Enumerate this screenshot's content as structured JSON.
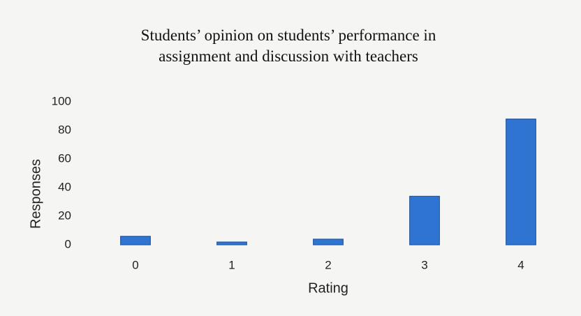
{
  "chart_data": {
    "type": "bar",
    "title": "Students’ opinion on students’ performance in assignment and discussion with teachers",
    "x_label": "Rating",
    "y_label": "Responses",
    "categories": [
      "0",
      "1",
      "2",
      "3",
      "4"
    ],
    "values": [
      6,
      2,
      4,
      34,
      88
    ],
    "color": "#2e74d0",
    "ylim": [
      0,
      100
    ],
    "yticks": [
      0,
      20,
      40,
      60,
      80,
      100
    ],
    "grid": false
  }
}
